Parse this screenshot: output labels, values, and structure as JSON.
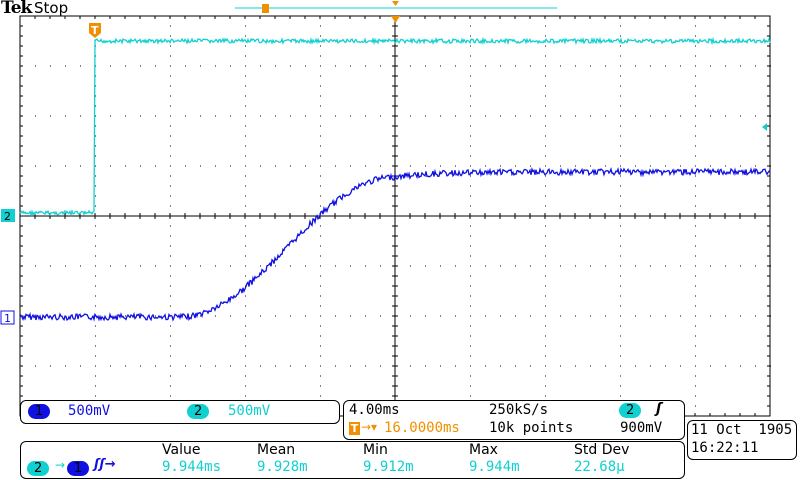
{
  "header": {
    "brand": "Tek",
    "status": "Stop"
  },
  "colors": {
    "ch1": "#1010e0",
    "ch2": "#10d0d0",
    "trigger": "#f09000"
  },
  "markers": {
    "trigger_marker": "T",
    "ch1_marker": "1",
    "ch2_marker": "2"
  },
  "channels": [
    {
      "number": "1",
      "scale": "500mV"
    },
    {
      "number": "2",
      "scale": "500mV"
    }
  ],
  "timebase": {
    "scale": "4.00ms",
    "sample_rate": "250kS/s",
    "trigger_position": "16.0000ms",
    "record_length": "10k points",
    "trigger_source": "2",
    "trigger_slope": "rising",
    "trigger_level": "900mV"
  },
  "measurement": {
    "source_from": "2",
    "source_to": "1",
    "type": "delay",
    "headers": [
      "Value",
      "Mean",
      "Min",
      "Max",
      "Std Dev"
    ],
    "values": [
      "9.944ms",
      "9.928m",
      "9.912m",
      "9.944m",
      "22.68µ"
    ]
  },
  "datetime": {
    "date": "11 Oct  1905",
    "time": "16:22:11"
  }
}
